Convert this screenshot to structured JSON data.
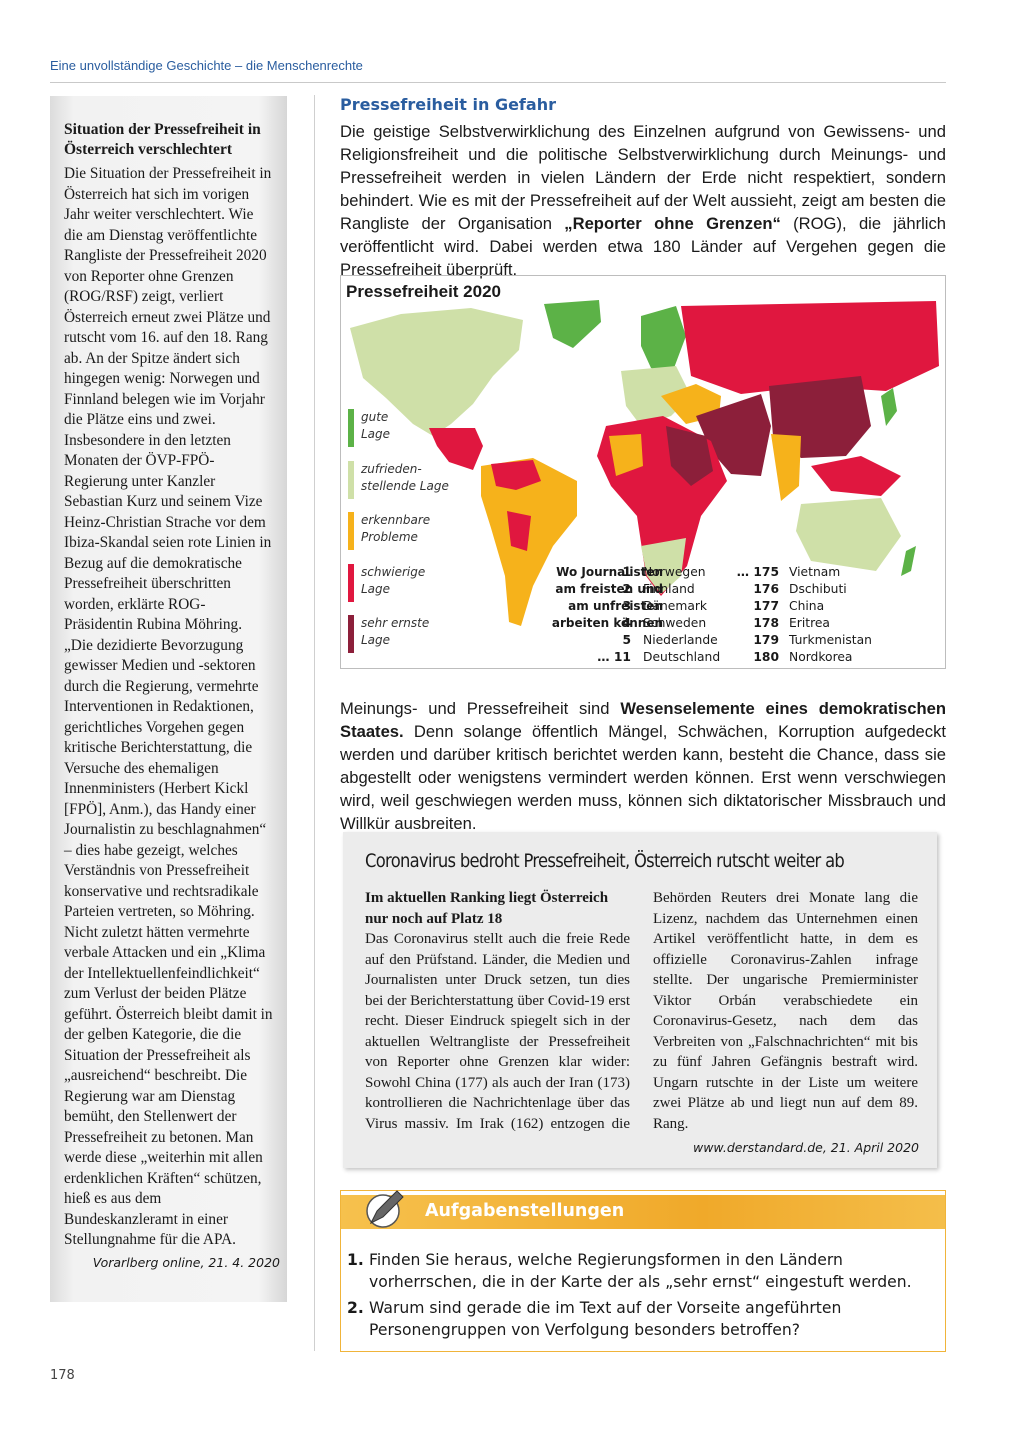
{
  "header": {
    "running_title": "Eine unvollständige Geschichte – die Menschenrechte"
  },
  "sidebar": {
    "title": "Situation der Pressefreiheit in Österreich verschlechtert",
    "body": "Die Situation der Pressefreiheit in Österreich hat sich im vorigen Jahr weiter verschlechtert. Wie die am Dienstag veröffentlichte Rangliste der Pressefreiheit 2020 von Reporter ohne Grenzen (ROG/RSF) zeigt, verliert Österreich erneut zwei Plätze und rutscht vom 16. auf den 18. Rang ab. An der Spitze ändert sich hingegen wenig: Norwegen und Finnland belegen wie im Vorjahr die Plätze eins und zwei. Insbesondere in den letzten Monaten der ÖVP-FPÖ-Regierung unter Kanzler Sebastian Kurz und seinem Vize Heinz-Christian Strache vor dem Ibiza-Skandal seien rote Linien in Bezug auf die demokratische Pressefreiheit überschritten worden, erklärte ROG-Präsidentin Rubina Möhring. „Die dezidierte Bevorzugung gewisser Medien und -sektoren durch die Regierung, vermehrte Interventionen in Redaktionen, gerichtliches Vorgehen gegen kritische Berichterstattung, die Versuche des ehemaligen Innenministers (Herbert Kickl [FPÖ], Anm.), das Handy einer Journalistin zu beschlagnahmen“ – dies habe gezeigt, welches Verständnis von Pressefreiheit konservative und rechtsradikale Parteien vertreten, so Möhring. Nicht zuletzt hätten vermehrte verbale Attacken und ein „Klima der Intellektuellenfeindlichkeit“ zum Verlust der beiden Plätze geführt. Österreich bleibt damit in der gelben Kategorie, die die Situation der Pressefreiheit als „ausreichend“ beschreibt. Die Regierung war am Dienstag bemüht, den Stellenwert der Pressefreiheit zu betonen. Man werde diese „weiterhin mit allen erdenklichen Kräften“ schützen, hieß es aus dem Bundeskanzleramt in einer Stellungnahme für die APA.",
    "source": "Vorarlberg online, 21. 4. 2020"
  },
  "main": {
    "heading": "Pressefreiheit in Gefahr",
    "paragraph1": {
      "before": "Die geistige Selbstverwirklichung des Einzelnen aufgrund von Gewissens- und Religionsfreiheit und die politische Selbstverwirklichung durch Meinungs- und Pressefreiheit werden in vielen Ländern der Erde nicht respektiert, sondern behindert. Wie es mit der Pressefreiheit auf der Welt aussieht, zeigt am besten die Rangliste der Organisation ",
      "bold": "„Reporter ohne Grenzen“",
      "after": " (ROG), die jährlich veröffentlicht wird. Dabei werden etwa 180 Länder auf Vergehen gegen die Pressefreiheit überprüft."
    },
    "paragraph2": {
      "before": "Meinungs- und Pressefreiheit sind ",
      "bold": "Wesenselemente eines demokratischen Staates.",
      "after": " Denn solange öffentlich Mängel, Schwächen, Korruption aufgedeckt werden und darüber kritisch berichtet werden kann, besteht die Chance, dass sie abgestellt oder wenigstens vermindert werden können. Erst wenn verschwiegen wird, weil geschwiegen werden muss, können sich diktatorischer Missbrauch und Willkür ausbreiten."
    }
  },
  "map": {
    "title": "Pressefreiheit 2020",
    "legend": [
      {
        "lines": [
          "gute",
          "Lage"
        ],
        "color": "#5cb247"
      },
      {
        "lines": [
          "zufrieden-",
          "stellende Lage"
        ],
        "color": "#cfe0a8"
      },
      {
        "lines": [
          "erkennbare",
          "Probleme"
        ],
        "color": "#f6b21b"
      },
      {
        "lines": [
          "schwierige",
          "Lage"
        ],
        "color": "#e0173f"
      },
      {
        "lines": [
          "sehr ernste",
          "Lage"
        ],
        "color": "#8c1f3a"
      }
    ],
    "ranking_label": [
      "Wo Journalisten",
      "am freisten und",
      "am unfreisten",
      "arbeiten können"
    ],
    "top": [
      {
        "rank": "1",
        "country": "Norwegen"
      },
      {
        "rank": "2",
        "country": "Finnland"
      },
      {
        "rank": "3",
        "country": "Dänemark"
      },
      {
        "rank": "4",
        "country": "Schweden"
      },
      {
        "rank": "5",
        "country": "Niederlande"
      },
      {
        "rank": "… 11",
        "country": "Deutschland"
      }
    ],
    "bottom": [
      {
        "rank": "… 175",
        "country": "Vietnam"
      },
      {
        "rank": "176",
        "country": "Dschibuti"
      },
      {
        "rank": "177",
        "country": "China"
      },
      {
        "rank": "178",
        "country": "Eritrea"
      },
      {
        "rank": "179",
        "country": "Turkmenistan"
      },
      {
        "rank": "180",
        "country": "Nordkorea"
      }
    ]
  },
  "article": {
    "headline": "Coronavirus bedroht Pressefreiheit, Österreich rutscht weiter ab",
    "subhead": "Im aktuellen Ranking liegt Österreich nur noch auf Platz 18",
    "body": "Das Coronavirus stellt auch die freie Rede auf den Prüfstand. Länder, die Medien und Journalisten unter Druck setzen, tun dies bei der Berichterstattung über Covid-19 erst recht. Dieser Eindruck spiegelt sich in der aktuellen Weltrangliste der Pressefreiheit von Reporter ohne Grenzen klar wider: Sowohl China (177) als auch der Iran (173) kontrollieren die Nachrichtenlage über das Virus massiv. Im Irak (162) entzogen die Behörden Reuters drei Monate lang die Lizenz, nachdem das Unternehmen einen Artikel veröffentlicht hatte, in dem es offizielle Coronavirus-Zahlen infrage stellte. Der ungarische Premierminister Viktor Orbán verabschiedete ein Coronavirus-Gesetz, nach dem das Verbreiten von „Falschnachrichten“ mit bis zu fünf Jahren Gefängnis bestraft wird. Ungarn rutschte in der Liste um weitere zwei Plätze ab und liegt nun auf dem 89. Rang.",
    "source": "www.derstandard.de, 21. April 2020"
  },
  "tasks": {
    "title": "Aufgabenstellungen",
    "items": [
      {
        "number": "1.",
        "text": "Finden Sie heraus, welche Regierungsformen in den Ländern vorherrschen, die in der Karte der als „sehr ernst“ eingestuft werden."
      },
      {
        "number": "2.",
        "text": "Warum sind gerade die im Text auf der Vorseite angeführten Personengruppen von Verfolgung besonders betroffen?"
      }
    ]
  },
  "footer": {
    "page_number": "178"
  }
}
